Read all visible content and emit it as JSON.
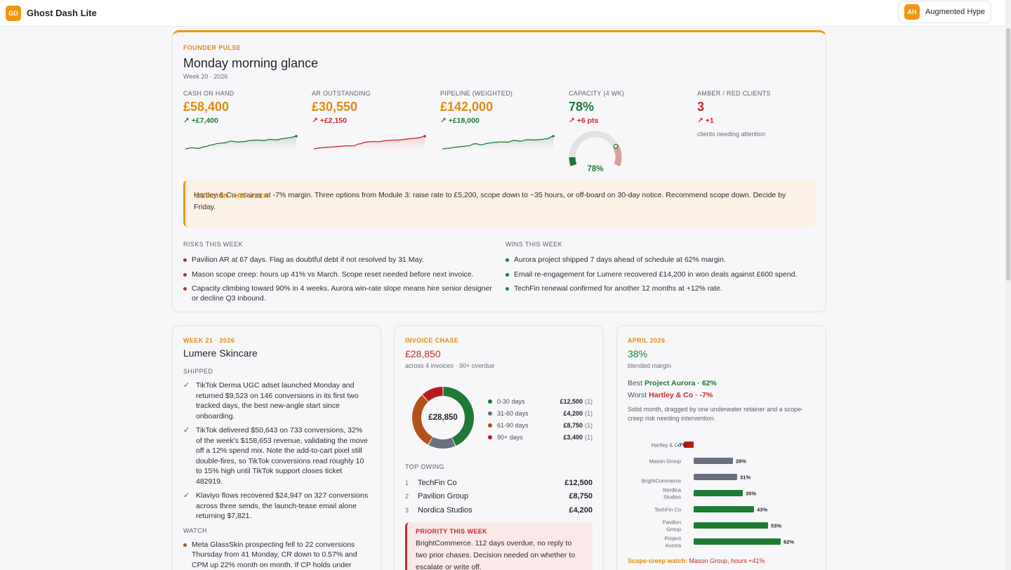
{
  "app": {
    "logo": "GD",
    "title": "Ghost Dash Lite"
  },
  "user": {
    "initials": "AH",
    "name": "Augmented Hype"
  },
  "pulse": {
    "eyebrow": "FOUNDER PULSE",
    "title": "Monday morning glance",
    "subtitle": "Week 20 · 2026",
    "metrics": [
      {
        "label": "CASH ON HAND",
        "value": "£58,400",
        "delta": "↗ +£7,400",
        "trend": [
          3,
          3.5,
          3.2,
          4,
          4.8,
          5.5,
          5.8,
          6.6,
          6.2,
          6.4,
          6.9,
          7.1,
          6.9,
          7.4,
          7.2,
          7.8,
          8.2,
          8.9
        ]
      },
      {
        "label": "AR OUTSTANDING",
        "value": "£30,550",
        "delta": "↗ +£2,150",
        "trend": [
          2,
          2.5,
          2.8,
          3,
          3.3,
          3.6,
          3.5,
          4.6,
          5.5,
          5.8,
          5.7,
          6.3,
          6.5,
          6.6,
          7,
          7.4,
          7.7,
          8.6
        ]
      },
      {
        "label": "PIPELINE (WEIGHTED)",
        "value": "£142,000",
        "delta": "↗ +£18,000",
        "trend": [
          2,
          2.3,
          2.8,
          3.2,
          3.5,
          4.6,
          4.1,
          4.8,
          5.3,
          5.5,
          5.4,
          6.2,
          5.9,
          6.6,
          6.5,
          6.7,
          7.1,
          8.4
        ]
      },
      {
        "label": "CAPACITY (4 WK)",
        "value": "78%",
        "delta": "↗ +6 pts",
        "gauge": 78,
        "gauge_label": "78%"
      },
      {
        "label": "AMBER / RED CLIENTS",
        "value": "3",
        "delta": "↗ +1",
        "note": "clients needing attention"
      }
    ],
    "decision": {
      "label": "DECISION THIS WEEK",
      "text": "Hartley & Co retainer at -7% margin. Three options from Module 3: raise rate to £5,200, scope down to ~35 hours, or off-board on 30-day notice. Recommend scope down. Decide by Friday."
    },
    "risks": {
      "title": "RISKS THIS WEEK",
      "items": [
        "Pavilion AR at 67 days. Flag as doubtful debt if not resolved by 31 May.",
        "Mason scope creep: hours up 41% vs March. Scope reset needed before next invoice.",
        "Capacity climbing toward 90% in 4 weeks. Aurora win-rate slope means hire senior designer or decline Q3 inbound."
      ]
    },
    "wins": {
      "title": "WINS THIS WEEK",
      "items": [
        "Aurora project shipped 7 days ahead of schedule at 62% margin.",
        "Email re-engagement for Lumere recovered £14,200 in won deals against £600 spend.",
        "TechFin renewal confirmed for another 12 months at +12% rate."
      ]
    }
  },
  "lumere": {
    "eyebrow": "WEEK 21 · 2026",
    "title": "Lumere Skincare",
    "shipped_label": "SHIPPED",
    "shipped": [
      "TikTok Derma UGC adset launched Monday and returned $9,523 on 146 conversions in its first two tracked days, the best new-angle start since onboarding.",
      "TikTok delivered $50,643 on 733 conversions, 32% of the week's $158,653 revenue, validating the move off a 12% spend mix. Note the add-to-cart pixel still double-fires, so TikTok conversions read roughly 10 to 15% high until TikTok support closes ticket 482919.",
      "Klaviyo flows recovered $24,947 on 327 conversions across three sends, the launch-tease email alone returning $7,821."
    ],
    "watch_label": "WATCH",
    "watch": [
      "Meta GlassSkin prospecting fell to 22 conversions Thursday from 41 Monday, CR down to 0.57% and CPM up 22% month on month. If CP holds under"
    ]
  },
  "invoice": {
    "eyebrow": "INVOICE CHASE",
    "total": "£28,850",
    "sub": "across 4 invoices · 90+ overdue",
    "center": "£28,850",
    "buckets": [
      {
        "label": "0-30 days",
        "amount": "£12,500",
        "count": "(1)",
        "value": 12500,
        "color": "#1e7a35"
      },
      {
        "label": "31-60 days",
        "amount": "£4,200",
        "count": "(1)",
        "value": 4200,
        "color": "#6b7080"
      },
      {
        "label": "61-90 days",
        "amount": "£8,750",
        "count": "(1)",
        "value": 8750,
        "color": "#b5521a"
      },
      {
        "label": "90+ days",
        "amount": "£3,400",
        "count": "(1)",
        "value": 3400,
        "color": "#b71c1c"
      }
    ],
    "top_owing_label": "TOP OWING",
    "top_owing": [
      {
        "rank": "1",
        "name": "TechFin Co",
        "amount": "£12,500"
      },
      {
        "rank": "2",
        "name": "Pavilion Group",
        "amount": "£8,750"
      },
      {
        "rank": "3",
        "name": "Nordica Studios",
        "amount": "£4,200"
      }
    ],
    "priority": {
      "label": "PRIORITY THIS WEEK",
      "text": "BrightCommerce. 112 days overdue, no reply to two prior chases. Decision needed on whether to escalate or write off."
    }
  },
  "april": {
    "eyebrow": "APRIL 2026",
    "value": "38%",
    "sub": "blended margin",
    "best_prefix": "Best",
    "best_name": "Project Aurora · 62%",
    "worst_prefix": "Worst",
    "worst_name": "Hartley & Co · -7%",
    "summary": "Solid month, dragged by one underwater retainer and a scope-creep risk needing intervention.",
    "scope_label": "Scope-creep watch:",
    "scope_text": "Mason Group, hours +41%"
  },
  "chart_data": {
    "type": "bar",
    "categories": [
      "Hartley & Co",
      "Mason Group",
      "BrightCommerce",
      "Nordica Studios",
      "TechFin Co",
      "Pavilion Group",
      "Project Aurora"
    ],
    "values": [
      -7,
      28,
      31,
      35,
      43,
      53,
      62
    ],
    "value_labels": [
      "-7%",
      "28%",
      "31%",
      "35%",
      "43%",
      "53%",
      "62%"
    ],
    "colors": [
      "#b71c1c",
      "#6b7080",
      "#6b7080",
      "#1e7a35",
      "#1e7a35",
      "#1e7a35",
      "#1e7a35"
    ],
    "orientation": "horizontal",
    "xlim": [
      -10,
      70
    ]
  }
}
